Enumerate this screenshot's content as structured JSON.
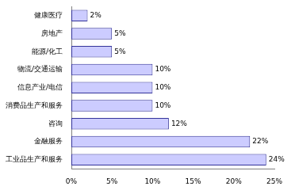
{
  "chart_data": {
    "type": "bar",
    "orientation": "horizontal",
    "categories": [
      "健康医疗",
      "房地产",
      "能源/化工",
      "物流/交通运输",
      "信息产业/电信",
      "消费品生产和服务",
      "咨询",
      "金融服务",
      "工业品生产和服务"
    ],
    "values": [
      2,
      5,
      5,
      10,
      10,
      10,
      12,
      22,
      24
    ],
    "value_labels": [
      "2%",
      "5%",
      "5%",
      "10%",
      "10%",
      "10%",
      "12%",
      "22%",
      "24%"
    ],
    "color": "#ccccff",
    "xlim": [
      0,
      25
    ],
    "xticks": [
      {
        "value": 0,
        "label": "0%"
      },
      {
        "value": 5,
        "label": "5%"
      },
      {
        "value": 10,
        "label": "10%"
      },
      {
        "value": 15,
        "label": "15%"
      },
      {
        "value": 20,
        "label": "20%"
      },
      {
        "value": 25,
        "label": "25%"
      }
    ],
    "grid": false,
    "data_labels": true
  }
}
